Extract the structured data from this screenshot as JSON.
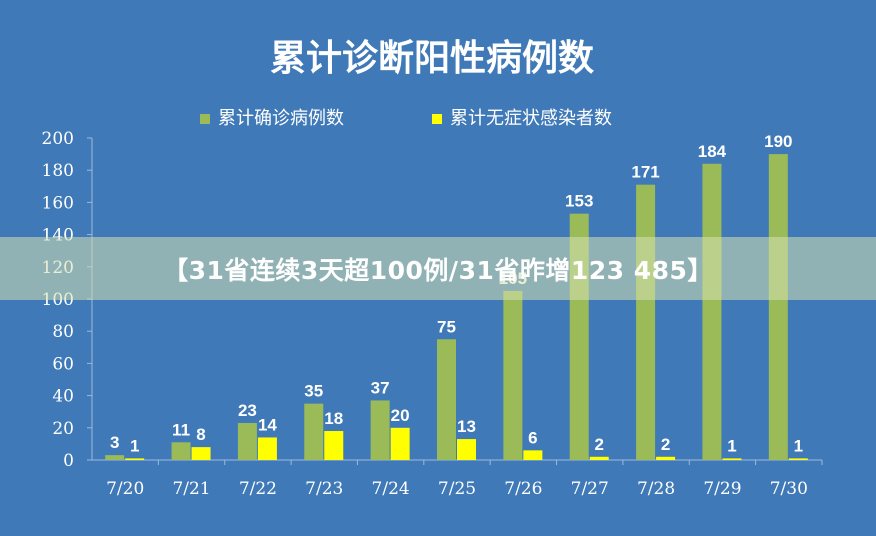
{
  "colors": {
    "background": "#3f79b7",
    "confirmed": "#9bbb59",
    "asymptomatic": "#ffff00",
    "text": "#ffffff"
  },
  "chart_data": {
    "type": "bar",
    "title": "累计诊断阳性病例数",
    "categories": [
      "7/20",
      "7/21",
      "7/22",
      "7/23",
      "7/24",
      "7/25",
      "7/26",
      "7/27",
      "7/28",
      "7/29",
      "7/30"
    ],
    "series": [
      {
        "name": "累计确诊病例数",
        "values": [
          3,
          11,
          23,
          35,
          37,
          75,
          105,
          153,
          171,
          184,
          190
        ]
      },
      {
        "name": "累计无症状感染者数",
        "values": [
          1,
          8,
          14,
          18,
          20,
          13,
          6,
          2,
          2,
          1,
          1
        ]
      }
    ],
    "ylim": [
      0,
      200
    ],
    "yticks": [
      0,
      20,
      40,
      60,
      80,
      100,
      120,
      140,
      160,
      180,
      200
    ],
    "grid": false,
    "legend": "top"
  },
  "banner": {
    "text": "【31省连续3天超100例/31省昨增123 485】"
  }
}
